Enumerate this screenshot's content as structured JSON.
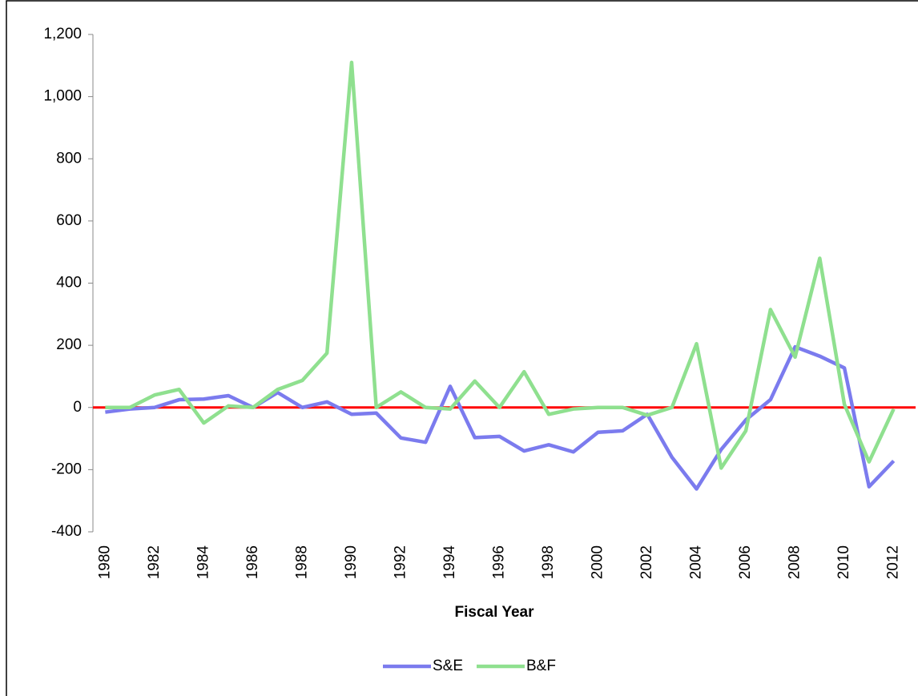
{
  "chart_data": {
    "type": "line",
    "x_label": "Fiscal Year",
    "x": [
      1980,
      1981,
      1982,
      1983,
      1984,
      1985,
      1986,
      1987,
      1988,
      1989,
      1990,
      1991,
      1992,
      1993,
      1994,
      1995,
      1996,
      1997,
      1998,
      1999,
      2000,
      2001,
      2002,
      2003,
      2004,
      2005,
      2006,
      2007,
      2008,
      2009,
      2010,
      2011,
      2012
    ],
    "xlim": [
      1979.5,
      2012.5
    ],
    "xticks": [
      1980,
      1982,
      1984,
      1986,
      1988,
      1990,
      1992,
      1994,
      1996,
      1998,
      2000,
      2002,
      2004,
      2006,
      2008,
      2010,
      2012
    ],
    "ylim": [
      -400,
      1200
    ],
    "yticks": [
      -400,
      -200,
      0,
      200,
      400,
      600,
      800,
      {
        "value": 1000,
        "label": "1,000"
      },
      {
        "value": 1200,
        "label": "1,200"
      }
    ],
    "zero_line_color": "#ff0000",
    "legend": "bottom",
    "series": [
      {
        "name": "S&E",
        "color": "#7b7bee",
        "values": [
          -15,
          -5,
          0,
          25,
          27,
          38,
          0,
          48,
          0,
          18,
          -22,
          -18,
          -98,
          -112,
          68,
          -97,
          -93,
          -140,
          -120,
          -143,
          -80,
          -75,
          -22,
          -160,
          -262,
          -135,
          -40,
          25,
          195,
          165,
          127,
          -255,
          -172
        ]
      },
      {
        "name": "B&F",
        "color": "#8fe08f",
        "values": [
          0,
          0,
          40,
          58,
          -50,
          5,
          0,
          58,
          87,
          175,
          1110,
          0,
          50,
          0,
          -5,
          85,
          0,
          115,
          -22,
          -5,
          0,
          0,
          -25,
          0,
          205,
          -195,
          -75,
          315,
          162,
          480,
          10,
          -175,
          -5
        ]
      }
    ]
  }
}
